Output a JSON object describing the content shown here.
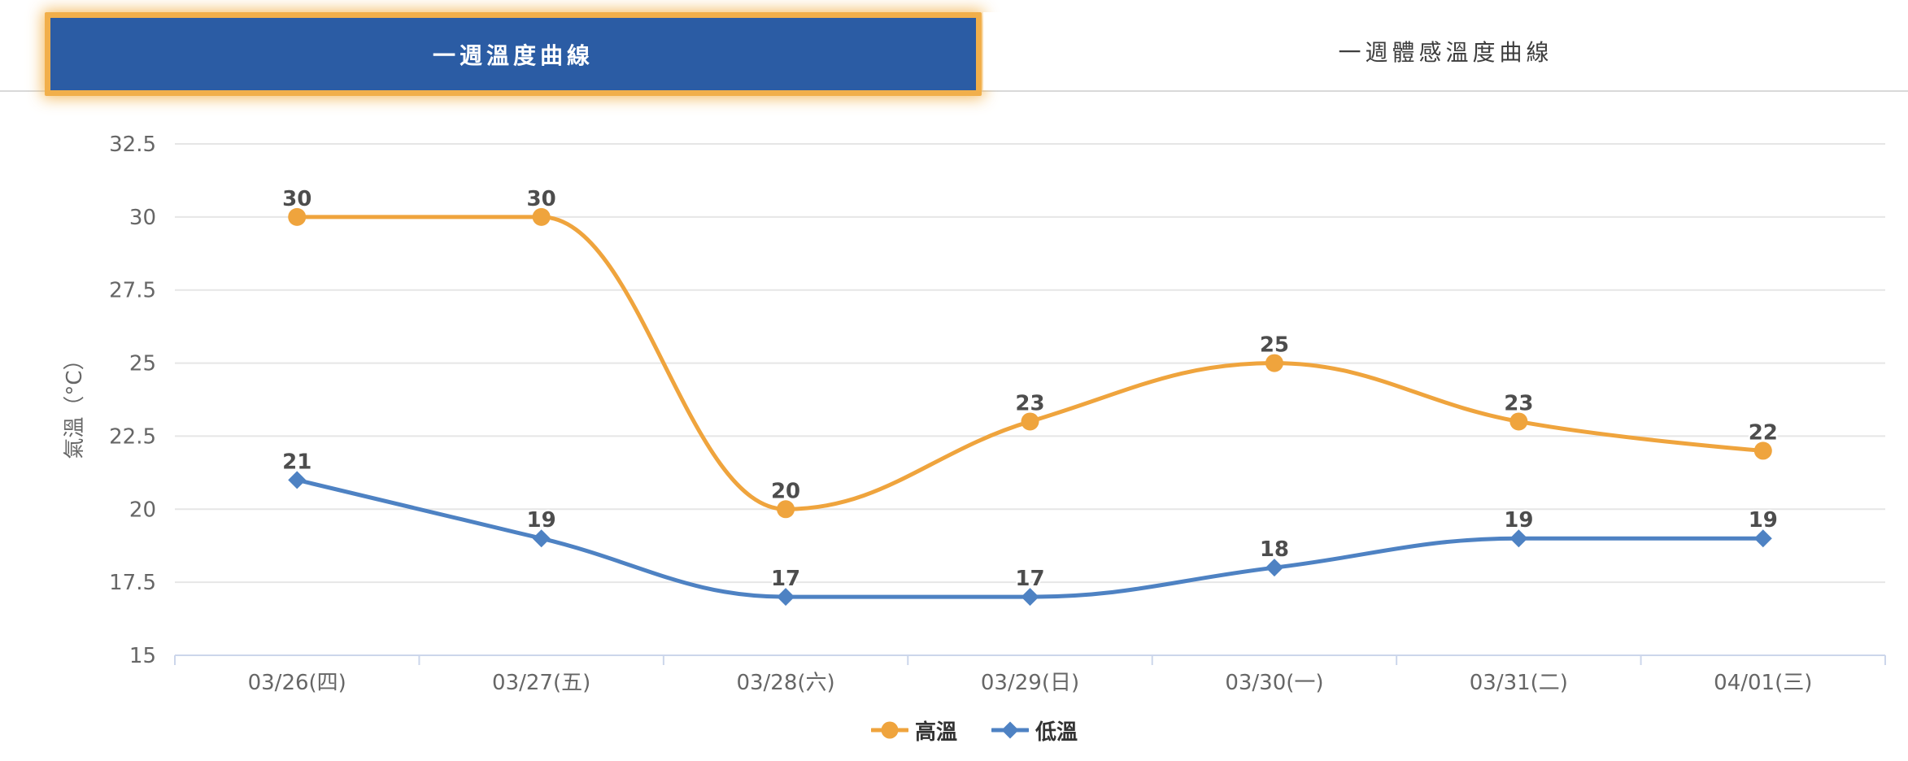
{
  "tabs": {
    "active": {
      "label": "一週溫度曲線"
    },
    "inactive": {
      "label": "一週體感溫度曲線"
    }
  },
  "chart_data": {
    "type": "line",
    "smooth": true,
    "categories": [
      "03/26(四)",
      "03/27(五)",
      "03/28(六)",
      "03/29(日)",
      "03/30(一)",
      "03/31(二)",
      "04/01(三)"
    ],
    "series": [
      {
        "name": "高溫",
        "values": [
          30,
          30,
          20,
          23,
          25,
          23,
          22
        ],
        "color": "#EFA43D",
        "marker": "circle"
      },
      {
        "name": "低溫",
        "values": [
          21,
          19,
          17,
          17,
          18,
          19,
          19
        ],
        "color": "#4E82C3",
        "marker": "diamond"
      }
    ],
    "xlabel": "",
    "ylabel": "氣溫（°C）",
    "ylim": [
      15,
      32.5
    ],
    "yticks": [
      15,
      17.5,
      20,
      22.5,
      25,
      27.5,
      30,
      32.5
    ],
    "grid": true,
    "legend_position": "bottom",
    "data_labels": true
  },
  "colors": {
    "tab_active_bg": "#2B5CA4",
    "tab_active_border": "#F1AF4B",
    "tab_inactive_text": "#3D3D3D",
    "grid_line": "#E6E6E6",
    "axis_line": "#CCD6EB",
    "axis_text": "#666666",
    "data_label": "#4D4D4D",
    "legend_text": "#333333"
  }
}
